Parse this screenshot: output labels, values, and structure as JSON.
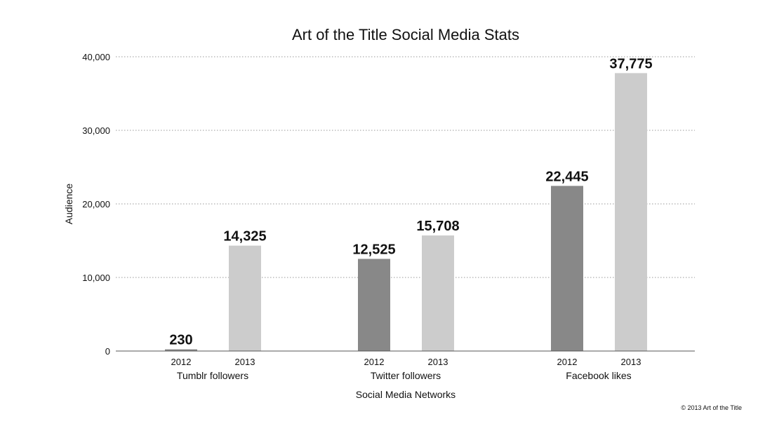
{
  "chart_data": {
    "type": "bar",
    "title": "Art of the Title Social Media Stats",
    "xlabel": "Social Media Networks",
    "ylabel": "Audience",
    "ylim": [
      0,
      40000
    ],
    "yticks": [
      "0",
      "10,000",
      "20,000",
      "30,000",
      "40,000"
    ],
    "ytick_values": [
      0,
      10000,
      20000,
      30000,
      40000
    ],
    "grid": true,
    "categories": [
      "Tumblr followers",
      "Twitter followers",
      "Facebook likes"
    ],
    "sub_categories": [
      "2012",
      "2013"
    ],
    "series": [
      {
        "values": [
          230,
          12525,
          22445
        ],
        "labels": [
          "230",
          "12,525",
          "22,445"
        ],
        "color": "#888888"
      },
      {
        "values": [
          14325,
          15708,
          37775
        ],
        "labels": [
          "14,325",
          "15,708",
          "37,775"
        ],
        "color": "#cccccc"
      }
    ]
  },
  "copyright": "© 2013 Art of the Title"
}
